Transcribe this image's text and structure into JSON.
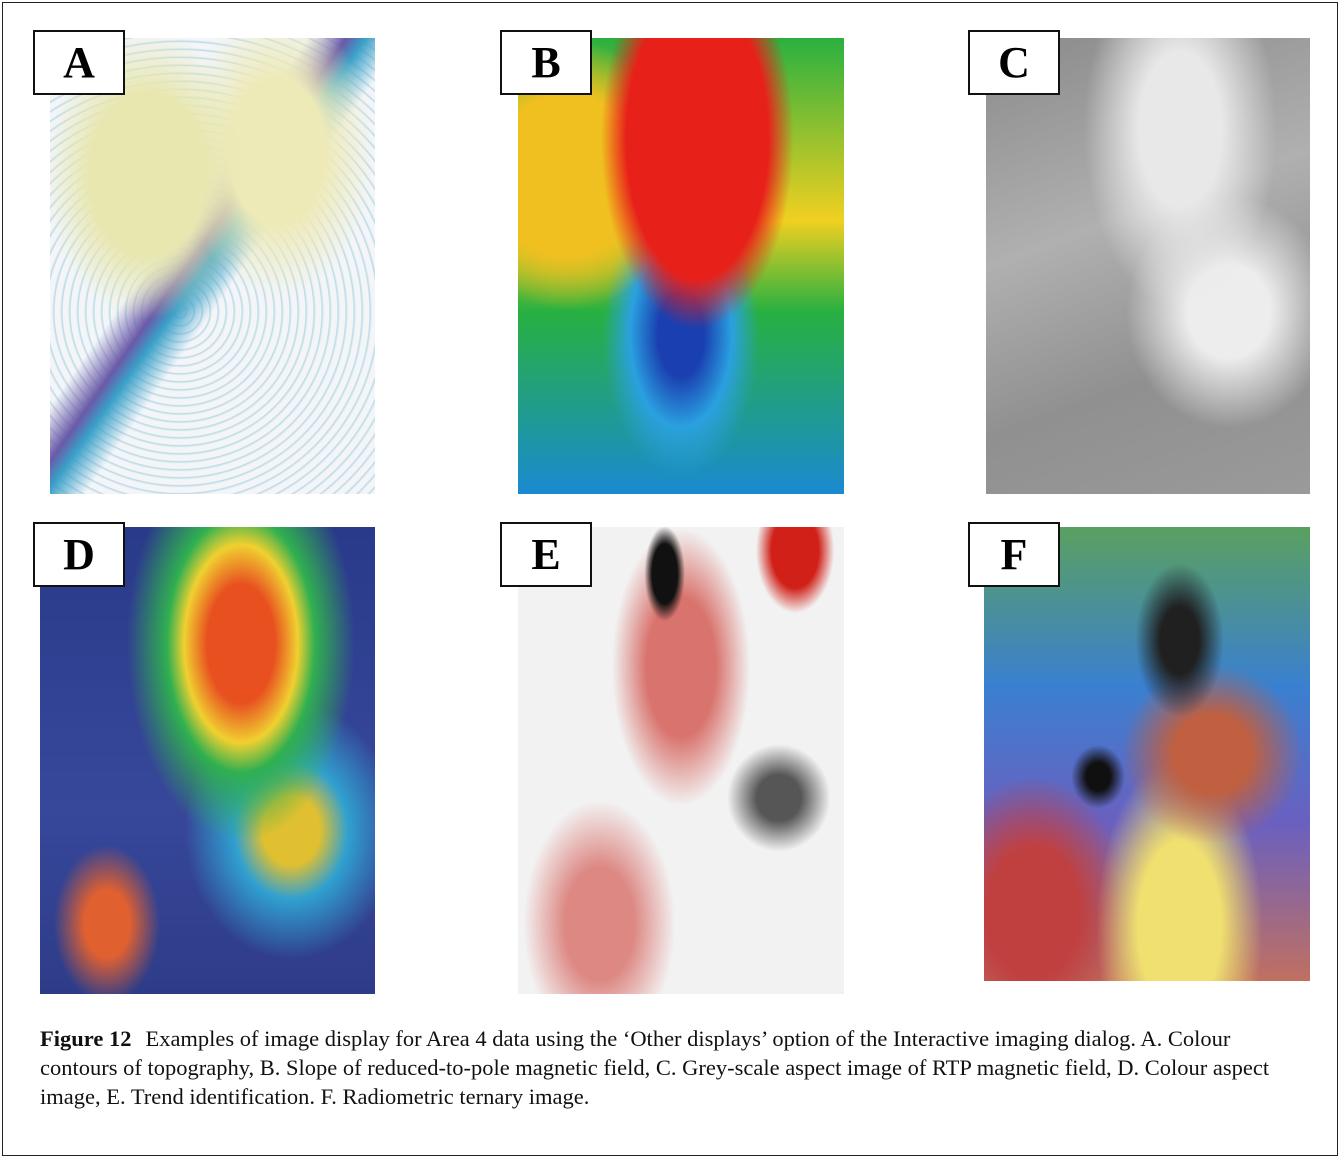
{
  "figure": {
    "panels": [
      {
        "label": "A"
      },
      {
        "label": "B"
      },
      {
        "label": "C"
      },
      {
        "label": "D"
      },
      {
        "label": "E"
      },
      {
        "label": "F"
      }
    ],
    "caption": {
      "label": "Figure 12",
      "text": "Examples of image display for Area 4 data using the ‘Other displays’ option of the Interactive imaging dialog. A. Colour contours of topography, B. Slope of reduced-to-pole magnetic field, C. Grey-scale aspect image of RTP magnetic field, D. Colour aspect image, E. Trend identification. F. Radiometric ternary image."
    }
  }
}
